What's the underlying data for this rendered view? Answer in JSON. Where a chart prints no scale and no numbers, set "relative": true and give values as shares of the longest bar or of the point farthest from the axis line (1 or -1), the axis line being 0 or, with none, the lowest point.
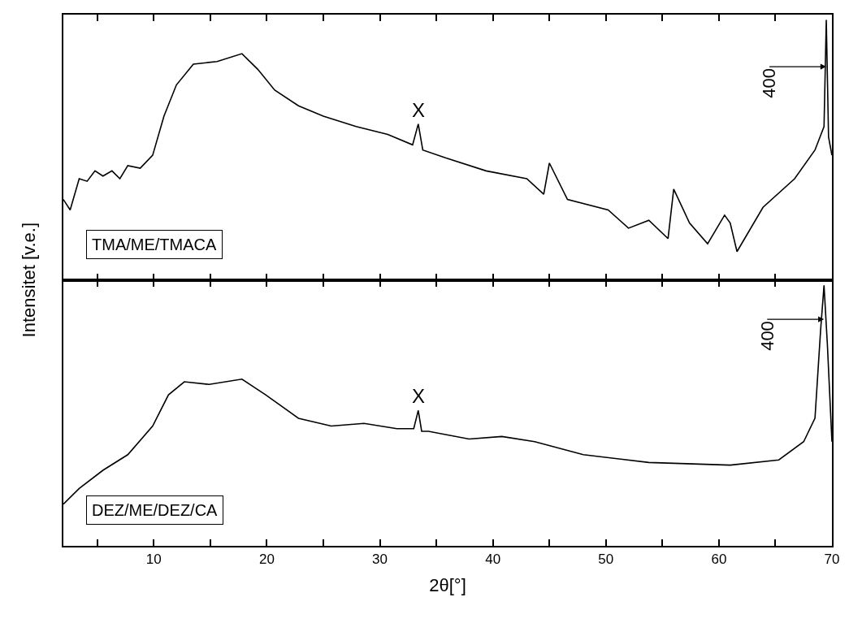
{
  "chart_data": [
    {
      "type": "line",
      "relative": true,
      "xlim": [
        2,
        70
      ],
      "xticks": [
        {
          "value": 5,
          "label": null
        },
        {
          "value": 10,
          "label": null
        },
        {
          "value": 15,
          "label": null
        },
        {
          "value": 20,
          "label": null
        },
        {
          "value": 25,
          "label": null
        },
        {
          "value": 30,
          "label": null
        },
        {
          "value": 35,
          "label": null
        },
        {
          "value": 40,
          "label": null
        },
        {
          "value": 45,
          "label": null
        },
        {
          "value": 50,
          "label": null
        },
        {
          "value": 55,
          "label": null
        },
        {
          "value": 60,
          "label": null
        },
        {
          "value": 65,
          "label": null
        },
        {
          "value": 70,
          "label": null
        }
      ],
      "tick_labels": false,
      "ylabel": "Intensitet [v.e.]",
      "legend": false,
      "grid": false,
      "annotations": [
        {
          "text": "X",
          "x": 33.4,
          "y": 0.6
        },
        {
          "text": "400",
          "x": 69.5,
          "y": 0.82
        }
      ],
      "series": [
        {
          "name": "TMA/ME/TMACA",
          "color": "#000000",
          "x": [
            2,
            2.6,
            3.4,
            4.1,
            4.8,
            5.5,
            6.3,
            7.0,
            7.7,
            8.8,
            9.9,
            10.9,
            12.0,
            13.5,
            15.6,
            17.8,
            19.2,
            20.7,
            22.8,
            25.0,
            27.9,
            30.7,
            32.9,
            33.4,
            33.8,
            35.8,
            39.4,
            43.0,
            44.5,
            45.0,
            46.6,
            50.2,
            52.0,
            53.8,
            55.5,
            56.0,
            57.4,
            59.0,
            60.5,
            61.0,
            61.6,
            63.9,
            66.7,
            68.5,
            69.3,
            69.5,
            69.7,
            70
          ],
          "values": [
            0.31,
            0.27,
            0.39,
            0.38,
            0.42,
            0.4,
            0.42,
            0.39,
            0.44,
            0.43,
            0.48,
            0.63,
            0.75,
            0.83,
            0.84,
            0.87,
            0.81,
            0.73,
            0.67,
            0.63,
            0.59,
            0.56,
            0.52,
            0.6,
            0.5,
            0.47,
            0.42,
            0.39,
            0.33,
            0.45,
            0.31,
            0.27,
            0.2,
            0.23,
            0.16,
            0.35,
            0.22,
            0.14,
            0.25,
            0.22,
            0.11,
            0.28,
            0.39,
            0.5,
            0.59,
            1,
            0.55,
            0.48
          ]
        }
      ]
    },
    {
      "type": "line",
      "relative": true,
      "xlim": [
        2,
        70
      ],
      "xticks": [
        {
          "value": 5,
          "label": null
        },
        {
          "value": 10,
          "label": "10"
        },
        {
          "value": 15,
          "label": null
        },
        {
          "value": 20,
          "label": "20"
        },
        {
          "value": 25,
          "label": null
        },
        {
          "value": 30,
          "label": "30"
        },
        {
          "value": 35,
          "label": null
        },
        {
          "value": 40,
          "label": "40"
        },
        {
          "value": 45,
          "label": null
        },
        {
          "value": 50,
          "label": "50"
        },
        {
          "value": 55,
          "label": null
        },
        {
          "value": 60,
          "label": "60"
        },
        {
          "value": 65,
          "label": null
        },
        {
          "value": 70,
          "label": "70"
        }
      ],
      "tick_labels": "x",
      "xlabel": "2θ[°]",
      "legend": false,
      "grid": false,
      "annotations": [
        {
          "text": "X",
          "x": 33.4,
          "y": 0.52
        },
        {
          "text": "400",
          "x": 69.3,
          "y": 0.87
        }
      ],
      "series": [
        {
          "name": "DEZ/ME/DEZ/CA",
          "color": "#000000",
          "x": [
            2,
            3.4,
            5.5,
            7.7,
            9.9,
            11.3,
            12.7,
            14.9,
            17.8,
            19.9,
            22.8,
            25.7,
            28.6,
            31.5,
            33.0,
            33.4,
            33.7,
            34.3,
            37.9,
            40.8,
            43.7,
            48.0,
            53.8,
            61.0,
            65.3,
            67.5,
            68.5,
            69.0,
            69.3,
            69.6,
            70
          ],
          "values": [
            0.16,
            0.22,
            0.29,
            0.35,
            0.46,
            0.58,
            0.63,
            0.62,
            0.64,
            0.58,
            0.49,
            0.46,
            0.47,
            0.45,
            0.45,
            0.52,
            0.44,
            0.44,
            0.41,
            0.42,
            0.4,
            0.35,
            0.32,
            0.31,
            0.33,
            0.4,
            0.49,
            0.83,
            1,
            0.77,
            0.4
          ]
        }
      ]
    }
  ]
}
